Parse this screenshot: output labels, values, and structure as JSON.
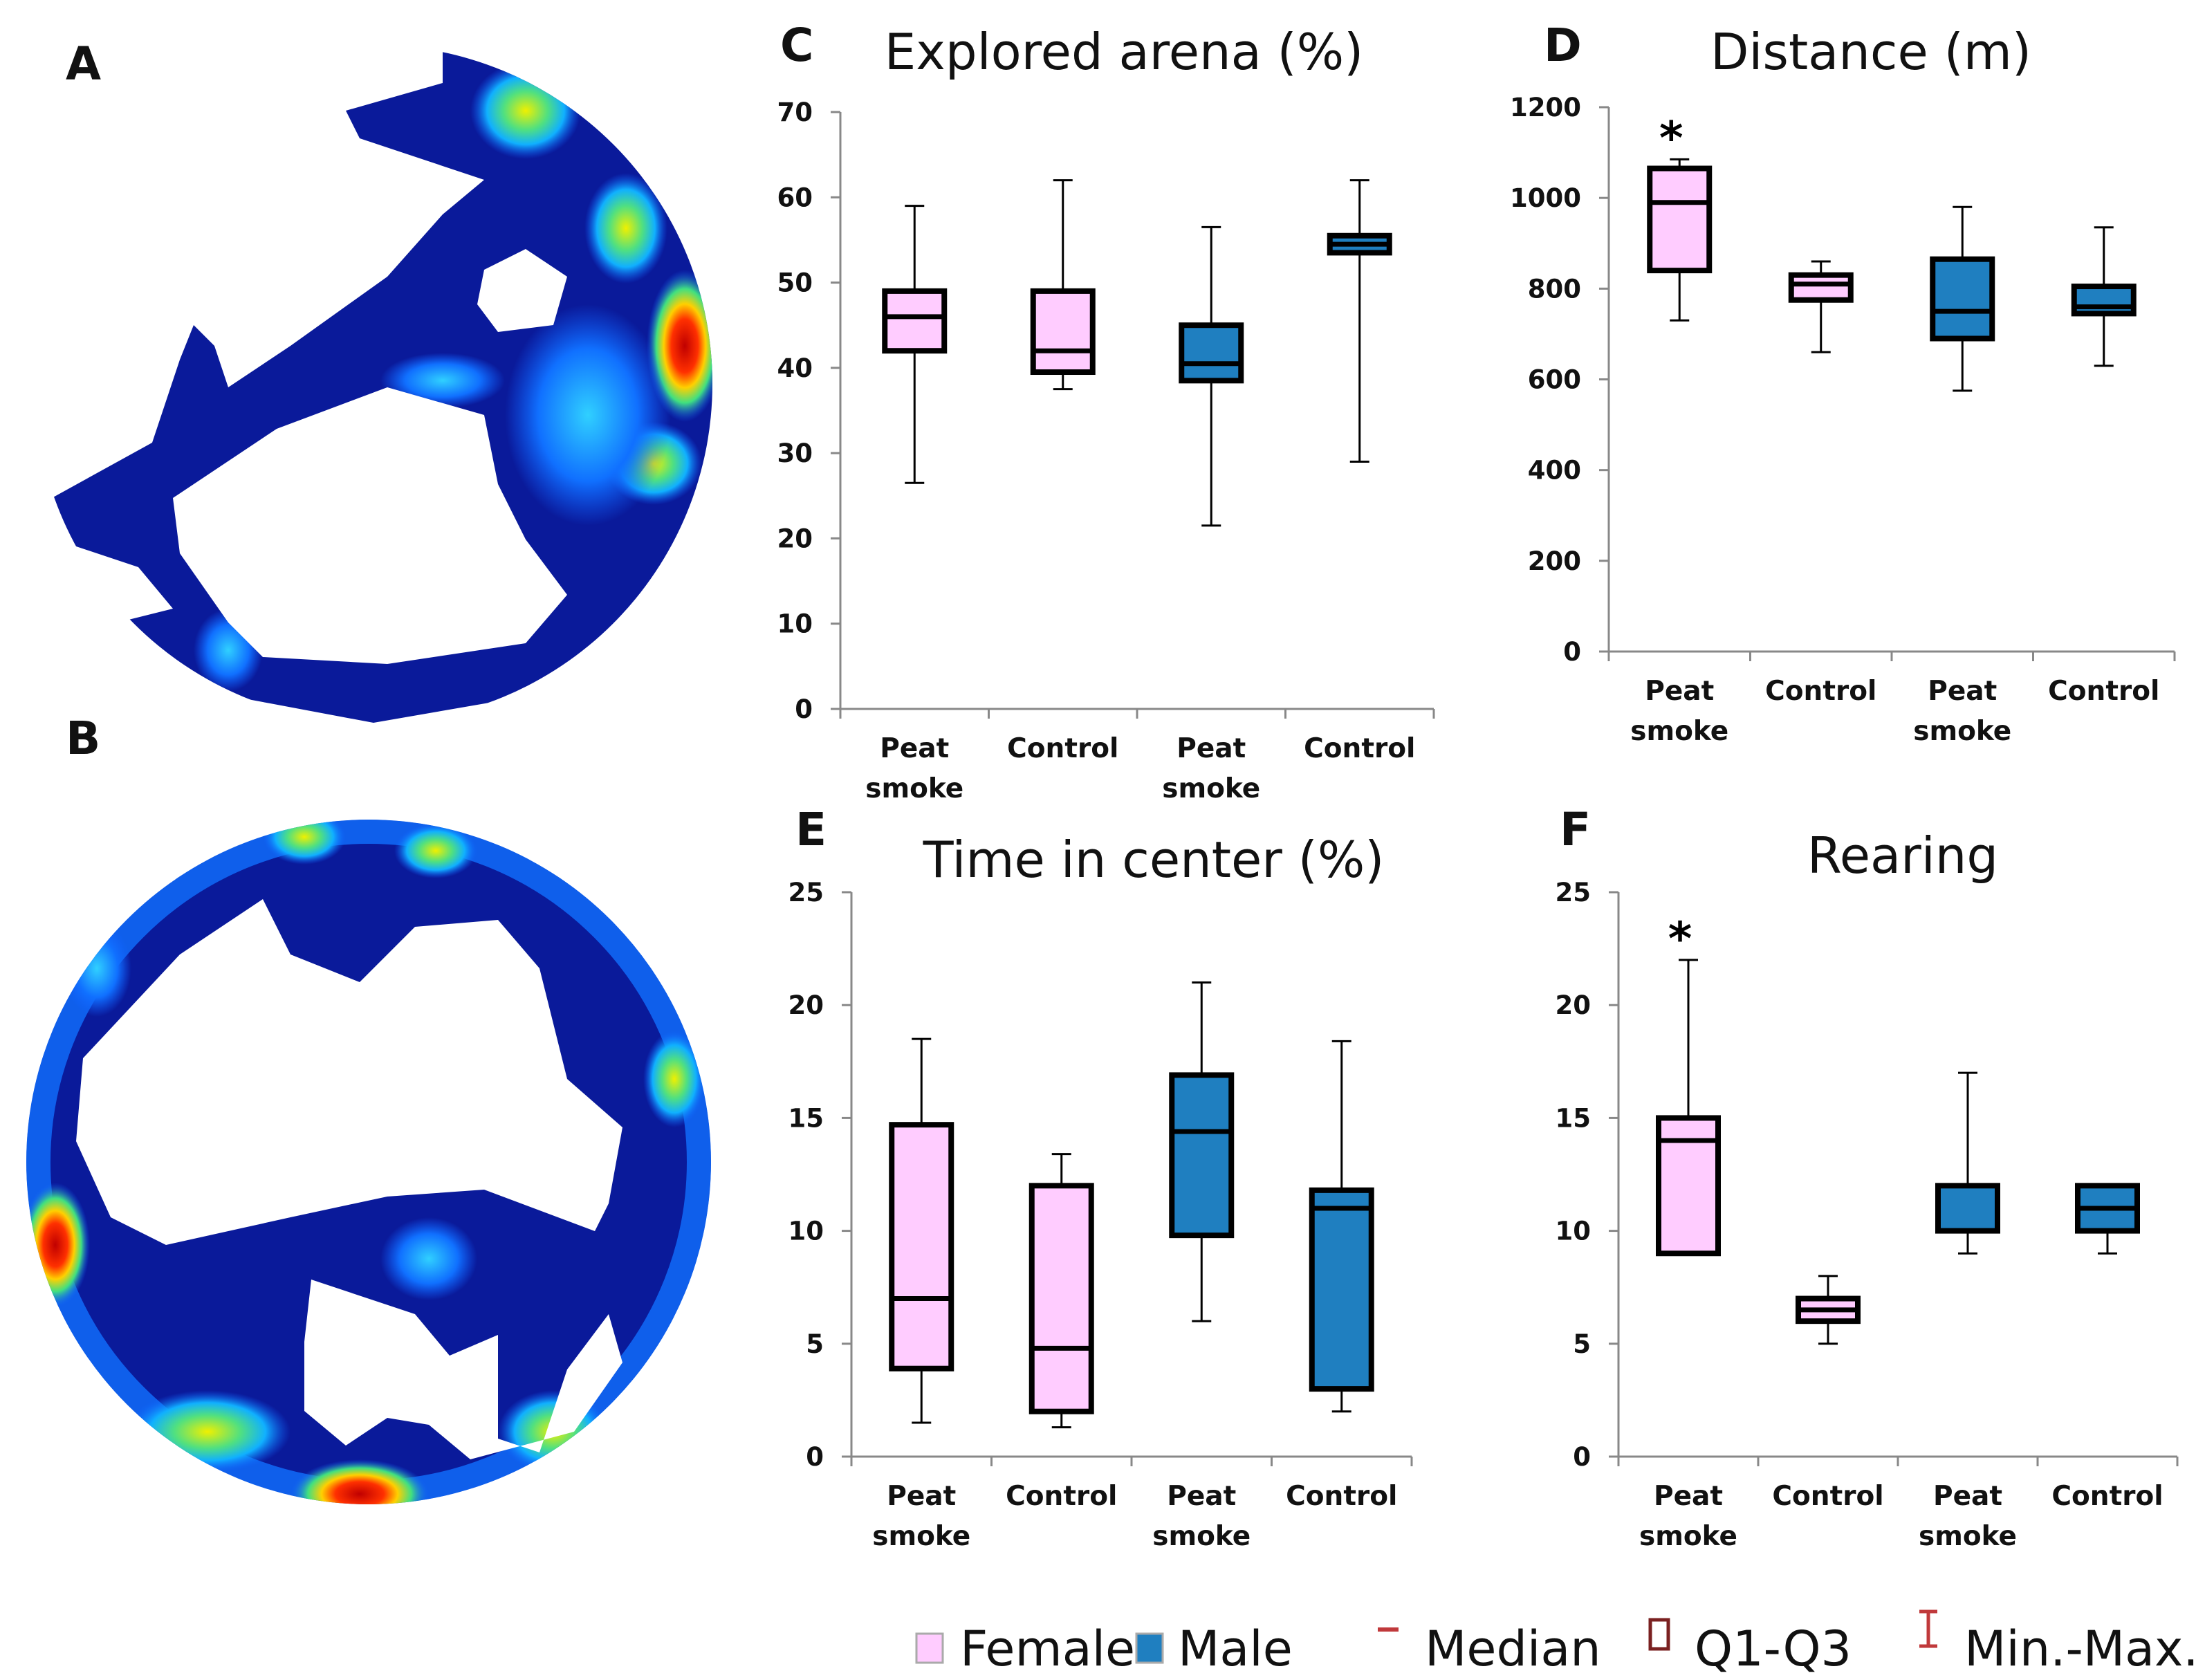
{
  "panel_labels": {
    "A": "A",
    "B": "B"
  },
  "colors": {
    "female": "#ffccff",
    "male": "#1f7fc0",
    "axis": "#888888",
    "legend_red": "#c0393b",
    "legend_box": "#7a2020"
  },
  "legend": {
    "female": "Female",
    "male": "Male",
    "median": "Median",
    "q1q3": "Q1-Q3",
    "minmax": "Min.-Max."
  },
  "chart_data": [
    {
      "type": "box",
      "panel": "C",
      "title": "Explored arena (%)",
      "ylim": [
        0,
        70
      ],
      "yticks": [
        0,
        10,
        20,
        30,
        40,
        50,
        60,
        70
      ],
      "categories": [
        [
          "Peat",
          "smoke"
        ],
        [
          "Control"
        ],
        [
          "Peat",
          "smoke"
        ],
        [
          "Control"
        ]
      ],
      "groups": [
        "female",
        "female",
        "male",
        "male"
      ],
      "boxes": [
        {
          "min": 26.5,
          "q1": 42,
          "median": 46,
          "q3": 49,
          "max": 59
        },
        {
          "min": 37.5,
          "q1": 39.5,
          "median": 42,
          "q3": 49,
          "max": 62
        },
        {
          "min": 21.5,
          "q1": 38.5,
          "median": 40.5,
          "q3": 45,
          "max": 56.5
        },
        {
          "min": 29,
          "q1": 53.5,
          "median": 54.5,
          "q3": 55.5,
          "max": 62
        }
      ],
      "significance": [
        null,
        null,
        null,
        null
      ]
    },
    {
      "type": "box",
      "panel": "D",
      "title": "Distance (m)",
      "ylim": [
        0,
        1200
      ],
      "yticks": [
        0,
        200,
        400,
        600,
        800,
        1000,
        1200
      ],
      "categories": [
        [
          "Peat",
          "smoke"
        ],
        [
          "Control"
        ],
        [
          "Peat",
          "smoke"
        ],
        [
          "Control"
        ]
      ],
      "groups": [
        "female",
        "female",
        "male",
        "male"
      ],
      "boxes": [
        {
          "min": 730,
          "q1": 840,
          "median": 990,
          "q3": 1065,
          "max": 1085
        },
        {
          "min": 660,
          "q1": 775,
          "median": 810,
          "q3": 830,
          "max": 860
        },
        {
          "min": 575,
          "q1": 690,
          "median": 750,
          "q3": 865,
          "max": 980
        },
        {
          "min": 630,
          "q1": 745,
          "median": 760,
          "q3": 805,
          "max": 935
        }
      ],
      "significance": [
        "*",
        null,
        null,
        null
      ]
    },
    {
      "type": "box",
      "panel": "E",
      "title": "Time in center (%)",
      "ylim": [
        0,
        25
      ],
      "yticks": [
        0,
        5,
        10,
        15,
        20,
        25
      ],
      "categories": [
        [
          "Peat",
          "smoke"
        ],
        [
          "Control"
        ],
        [
          "Peat",
          "smoke"
        ],
        [
          "Control"
        ]
      ],
      "groups": [
        "female",
        "female",
        "male",
        "male"
      ],
      "boxes": [
        {
          "min": 1.5,
          "q1": 3.9,
          "median": 7,
          "q3": 14.7,
          "max": 18.5
        },
        {
          "min": 1.3,
          "q1": 2,
          "median": 4.8,
          "q3": 12,
          "max": 13.4
        },
        {
          "min": 6,
          "q1": 9.8,
          "median": 14.4,
          "q3": 16.9,
          "max": 21
        },
        {
          "min": 2,
          "q1": 3,
          "median": 11,
          "q3": 11.8,
          "max": 18.4
        }
      ],
      "significance": [
        null,
        null,
        null,
        null
      ]
    },
    {
      "type": "box",
      "panel": "F",
      "title": "Rearing",
      "ylim": [
        0,
        25
      ],
      "yticks": [
        0,
        5,
        10,
        15,
        20,
        25
      ],
      "categories": [
        [
          "Peat",
          "smoke"
        ],
        [
          "Control"
        ],
        [
          "Peat",
          "smoke"
        ],
        [
          "Control"
        ]
      ],
      "groups": [
        "female",
        "female",
        "male",
        "male"
      ],
      "boxes": [
        {
          "min": 9,
          "q1": 9,
          "median": 14,
          "q3": 15,
          "max": 22
        },
        {
          "min": 5,
          "q1": 6,
          "median": 6.5,
          "q3": 7,
          "max": 8
        },
        {
          "min": 9,
          "q1": 10,
          "median": 12,
          "q3": 12,
          "max": 17
        },
        {
          "min": 9,
          "q1": 10,
          "median": 11,
          "q3": 12,
          "max": 12
        }
      ],
      "significance": [
        "*",
        null,
        null,
        null
      ]
    }
  ]
}
